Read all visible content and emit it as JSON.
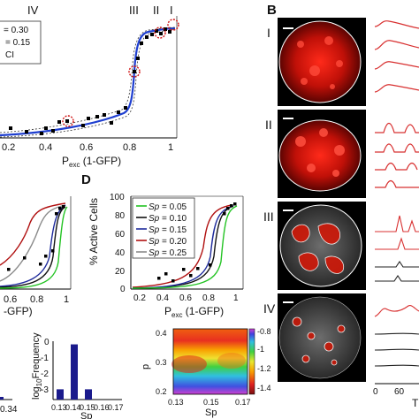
{
  "panel_labels": {
    "B": "B",
    "D": "D"
  },
  "panelA": {
    "roman_labels": [
      "IV",
      "III",
      "II",
      "I"
    ],
    "legend_lines": [
      "= 0.30",
      "= 0.15",
      "CI"
    ],
    "x_ticks": [
      "0.2",
      "0.4",
      "0.6",
      "0.8",
      "1"
    ],
    "x_label_main": "P",
    "x_label_sub": "exc",
    "x_label_rest": " (1-GFP)"
  },
  "panelC": {
    "x_ticks": [
      "0.6",
      "0.8",
      "1"
    ],
    "x_label": "-GFP)"
  },
  "panelD": {
    "ylabel": "% Active Cells",
    "y_ticks": [
      "100",
      "80",
      "60",
      "40",
      "20",
      "0"
    ],
    "x_ticks": [
      "0.2",
      "0.4",
      "0.6",
      "0.8",
      "1"
    ],
    "x_label_main": "P",
    "x_label_sub": "exc",
    "x_label_rest": " (1-GFP)",
    "legend": [
      {
        "sym": "Sp",
        "val": " = 0.05",
        "color": "#22c322"
      },
      {
        "sym": "Sp",
        "val": " = 0.10",
        "color": "#111111"
      },
      {
        "sym": "Sp",
        "val": " = 0.15",
        "color": "#1f2b9c"
      },
      {
        "sym": "Sp",
        "val": " = 0.20",
        "color": "#b01010"
      },
      {
        "sym": "Sp",
        "val": " = 0.25",
        "color": "#8a8a8a"
      }
    ]
  },
  "panelE_left": {
    "x_tick": "0.34"
  },
  "panelE_hist": {
    "ylabel_pre": "log",
    "ylabel_sub": "10",
    "ylabel_post": "Frequency",
    "y_ticks": [
      "0",
      "-1",
      "-2",
      "-3"
    ],
    "x_ticks": [
      "0.13",
      "0.14",
      "0.15",
      "0.16",
      "0.17"
    ],
    "xlabel": "Sp",
    "chart_data": {
      "type": "bar",
      "categories": [
        "0.13",
        "0.14",
        "0.15",
        "0.16",
        "0.17"
      ],
      "values": [
        -2.85,
        0,
        -2.85,
        null,
        null
      ],
      "ylim": [
        -3.5,
        0.2
      ]
    }
  },
  "panelE_heat": {
    "ylabel": "p",
    "y_ticks": [
      "0.4",
      "0.3",
      "0.2"
    ],
    "x_ticks": [
      "0.13",
      "0.15",
      "0.17"
    ],
    "xlabel": "Sp",
    "colorbar_ticks": [
      "-0.8",
      "-1",
      "-1.2",
      "-1.4"
    ]
  },
  "panelB": {
    "row_labels": [
      "I",
      "II",
      "III",
      "IV"
    ],
    "time_ticks": [
      "0",
      "60"
    ],
    "time_label": "T"
  }
}
